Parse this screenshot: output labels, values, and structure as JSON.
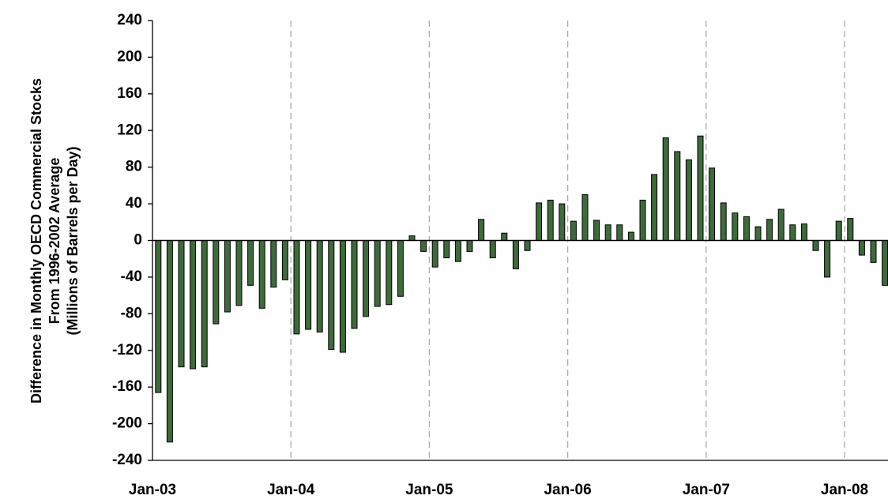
{
  "chart_data": {
    "type": "bar",
    "y_label": [
      "Difference in Monthly OECD Commercial Stocks",
      "From 1996-2002 Average",
      "(Millions of Barrels per Day)"
    ],
    "categories": [
      "Jan-03",
      null,
      null,
      null,
      null,
      null,
      null,
      null,
      null,
      null,
      null,
      null,
      "Jan-04",
      null,
      null,
      null,
      null,
      null,
      null,
      null,
      null,
      null,
      null,
      null,
      "Jan-05",
      null,
      null,
      null,
      null,
      null,
      null,
      null,
      null,
      null,
      null,
      null,
      "Jan-06",
      null,
      null,
      null,
      null,
      null,
      null,
      null,
      null,
      null,
      null,
      null,
      "Jan-07",
      null,
      null,
      null,
      null,
      null,
      null,
      null,
      null,
      null,
      null,
      null,
      "Jan-08",
      null,
      null,
      null
    ],
    "values": [
      -166,
      -220,
      -138,
      -140,
      -138,
      -91,
      -78,
      -71,
      -49,
      -74,
      -51,
      -43,
      -102,
      -97,
      -100,
      -119,
      -122,
      -96,
      -83,
      -72,
      -70,
      -61,
      5,
      -12,
      -29,
      -19,
      -23,
      -12,
      23,
      -19,
      8,
      -31,
      -11,
      41,
      44,
      40,
      21,
      50,
      22,
      17,
      17,
      9,
      44,
      72,
      112,
      97,
      88,
      114,
      79,
      41,
      30,
      26,
      15,
      23,
      34,
      17,
      18,
      -11,
      -40,
      21,
      24,
      -16,
      -24,
      -49
    ],
    "color": "#3d6b3a",
    "ylim": [
      -240,
      240
    ],
    "yticks": [
      -240,
      -200,
      -160,
      -120,
      -80,
      -40,
      0,
      40,
      80,
      120,
      160,
      200,
      240
    ],
    "grid": "x"
  }
}
